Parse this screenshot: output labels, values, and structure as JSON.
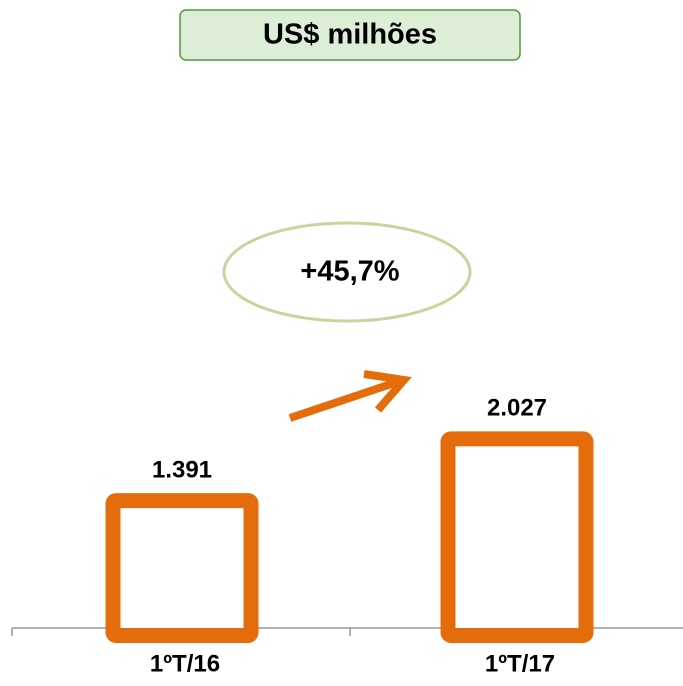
{
  "chart_data": {
    "type": "bar",
    "title": "US$ milhões",
    "annotation": "+45,7%",
    "categories": [
      "1ºT/16",
      "1ºT/17"
    ],
    "values": [
      1391,
      2027
    ],
    "value_labels": [
      "1.391",
      "2.027"
    ],
    "color": "#e46c0a"
  }
}
